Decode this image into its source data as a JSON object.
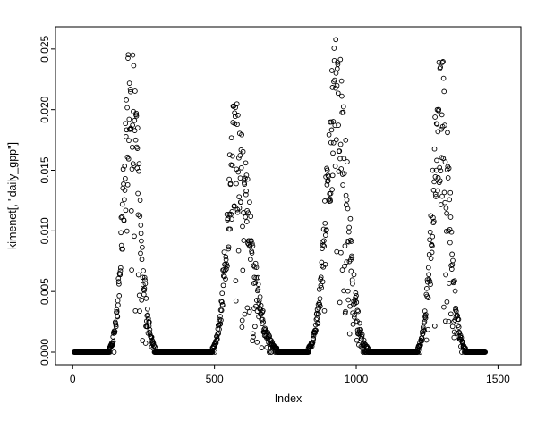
{
  "figure": {
    "background": "#ffffff",
    "foreground": "#000000"
  },
  "chart_data": {
    "type": "scatter",
    "title": "",
    "xlabel": "Index",
    "ylabel": "kimenet[, \"daily_gpp\"]",
    "marker": "open-circle",
    "marker_color": "#000000",
    "grid": false,
    "legend": "none",
    "xlim": [
      0,
      1520
    ],
    "ylim": [
      0,
      0.0258
    ],
    "x_ticks": [
      0,
      500,
      1000,
      1500
    ],
    "x_tick_labels": [
      "0",
      "500",
      "1000",
      "1500"
    ],
    "y_ticks": [
      0,
      0.005,
      0.01,
      0.015,
      0.02,
      0.025
    ],
    "y_tick_labels": [
      "0.000",
      "0.005",
      "0.010",
      "0.015",
      "0.020",
      "0.025"
    ],
    "series_description": "Daily GPP values over index 0-1460: four seasonal bell-shaped peaks (maxima near 0.0255, 0.020, 0.0255, 0.0245 at index ~205, ~572, ~930, ~1298) separated by long runs of exact zeros",
    "x_start": 5,
    "x_end": 1455,
    "zero_threshold": 0.0003,
    "prng_seed": 42,
    "peaks": [
      {
        "center": 205,
        "amplitude": 0.0238,
        "width_left": 26,
        "width_right": 30
      },
      {
        "center": 572,
        "amplitude": 0.019,
        "width_left": 28,
        "width_right": 52
      },
      {
        "center": 930,
        "amplitude": 0.0238,
        "width_left": 34,
        "width_right": 38
      },
      {
        "center": 1298,
        "amplitude": 0.0228,
        "width_left": 28,
        "width_right": 30
      }
    ]
  }
}
